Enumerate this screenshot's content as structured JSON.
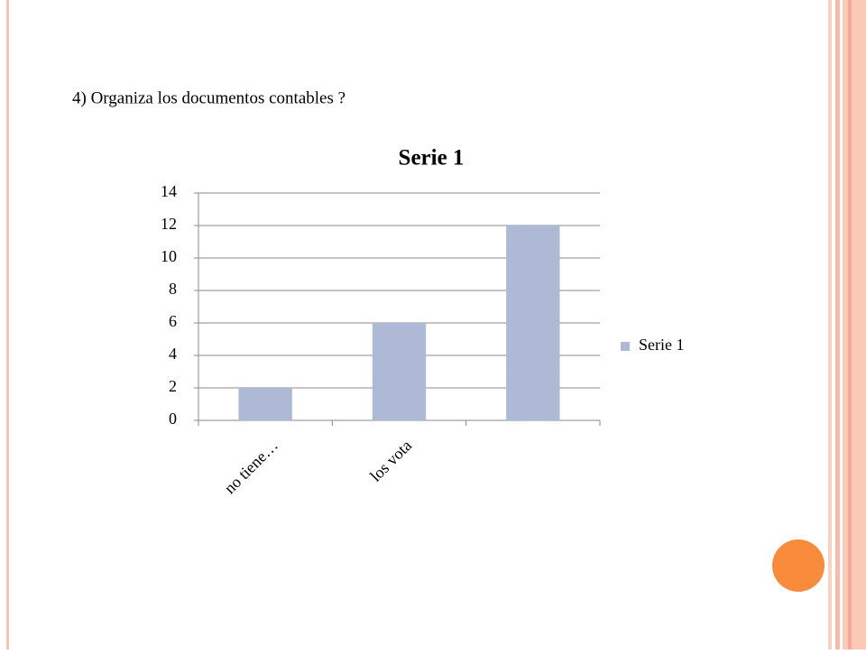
{
  "slide": {
    "heading": "4) Organiza los documentos contables ?"
  },
  "chart_data": {
    "type": "bar",
    "title": "Serie 1",
    "categories": [
      "no tiene…",
      "los vota",
      null
    ],
    "series": [
      {
        "name": "Serie 1",
        "color": "#aeb9d5",
        "values": [
          2,
          6,
          12
        ]
      }
    ],
    "ylim": [
      0,
      14
    ],
    "yticks": [
      0,
      2,
      4,
      6,
      8,
      10,
      12,
      14
    ],
    "grid": true,
    "legend": "right"
  }
}
